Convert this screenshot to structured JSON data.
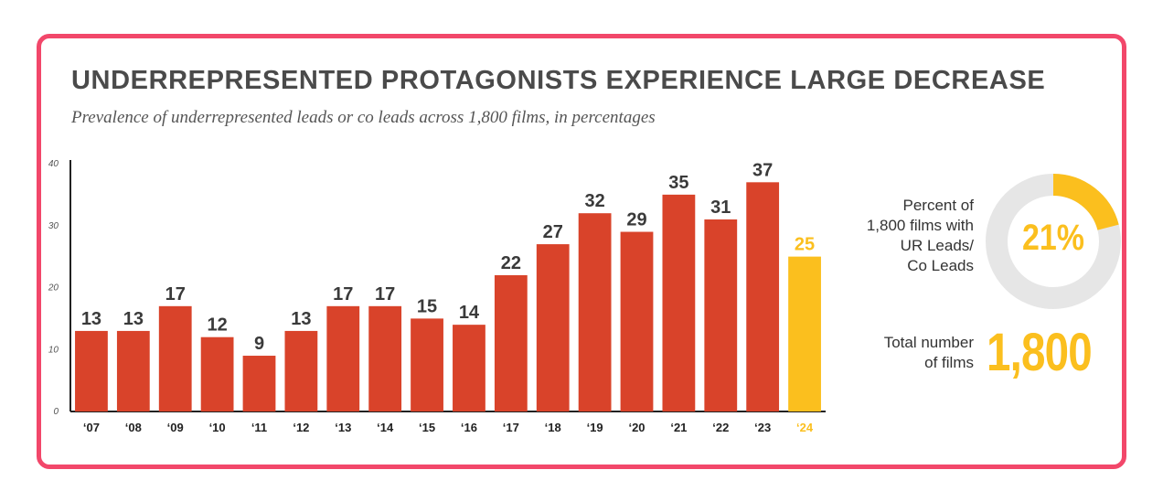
{
  "title": "UNDERREPRESENTED PROTAGONISTS EXPERIENCE LARGE DECREASE",
  "subtitle": "Prevalence of underrepresented leads or co leads across 1,800 films, in percentages",
  "colors": {
    "border": "#f2476a",
    "bar": "#d9432a",
    "highlight": "#fbbf1e",
    "ring": "#e6e6e6",
    "axis": "#222222"
  },
  "chart_data": {
    "type": "bar",
    "categories": [
      "‘07",
      "‘08",
      "‘09",
      "‘10",
      "‘11",
      "‘12",
      "‘13",
      "‘14",
      "‘15",
      "‘16",
      "‘17",
      "‘18",
      "‘19",
      "‘20",
      "‘21",
      "‘22",
      "‘23",
      "‘24"
    ],
    "values": [
      13,
      13,
      17,
      12,
      9,
      13,
      17,
      17,
      15,
      14,
      22,
      27,
      32,
      29,
      35,
      31,
      37,
      25
    ],
    "highlight_category": "‘24",
    "ylim": [
      0,
      40
    ],
    "yticks": [
      0,
      10,
      20,
      30,
      40
    ],
    "grid": false,
    "data_labels": true
  },
  "side_panel": {
    "percent_label_lines": [
      "Percent of",
      "1,800 films with",
      "UR Leads/",
      "Co Leads"
    ],
    "percent_value": "21%",
    "percent_fraction": 0.21,
    "total_label_lines": [
      "Total number",
      "of films"
    ],
    "total_value": "1,800"
  }
}
